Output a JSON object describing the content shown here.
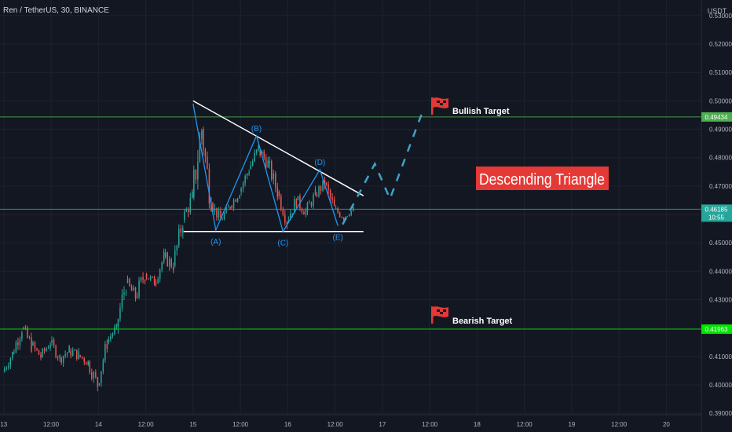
{
  "header": {
    "symbol_title": "Ren / TetherUS, 30, BINANCE",
    "currency": "USDT"
  },
  "chart_data": {
    "type": "candlestick",
    "price_axis": {
      "ylim": [
        0.3895,
        0.5355
      ],
      "ticks": [
        "0.39000",
        "0.40000",
        "0.41000",
        "0.42000",
        "0.43000",
        "0.44000",
        "0.45000",
        "0.46000",
        "0.47000",
        "0.48000",
        "0.49000",
        "0.50000",
        "0.51000",
        "0.52000",
        "0.53000"
      ]
    },
    "time_axis": {
      "ticks": [
        "13",
        "12:00",
        "14",
        "12:00",
        "15",
        "12:00",
        "16",
        "12:00",
        "17",
        "12:00",
        "18",
        "12:00",
        "19",
        "12:00",
        "20"
      ]
    },
    "horizontal_lines": [
      {
        "name": "bullish",
        "price": 0.49434,
        "label": "0.49434",
        "color": "#4caf50"
      },
      {
        "name": "current",
        "price": 0.46185,
        "label": "0.46185",
        "sublabel": "10:55",
        "color": "#26a69a"
      },
      {
        "name": "bearish",
        "price": 0.41963,
        "label": "0.41963",
        "color": "#00e600"
      }
    ],
    "triangle": {
      "upper_trendline": [
        {
          "t": 15.0,
          "p": 0.5
        },
        {
          "t": 16.8,
          "p": 0.4666
        }
      ],
      "lower_support": [
        {
          "t": 14.9,
          "p": 0.454
        },
        {
          "t": 16.8,
          "p": 0.454
        }
      ]
    },
    "waves": [
      {
        "label": "(A)",
        "t": 15.24,
        "p": 0.4545
      },
      {
        "label": "(B)",
        "t": 15.67,
        "p": 0.4877
      },
      {
        "label": "(C)",
        "t": 15.95,
        "p": 0.454
      },
      {
        "label": "(D)",
        "t": 16.34,
        "p": 0.4758
      },
      {
        "label": "(E)",
        "t": 16.53,
        "p": 0.456
      }
    ],
    "projection": [
      {
        "t": 16.58,
        "p": 0.4565
      },
      {
        "t": 16.92,
        "p": 0.4778
      },
      {
        "t": 17.08,
        "p": 0.4655
      },
      {
        "t": 17.42,
        "p": 0.4958
      }
    ],
    "annotations": {
      "pattern_label": "Descending Triangle",
      "bullish_label": "Bullish Target",
      "bearish_label": "Bearish Target"
    },
    "colors": {
      "up": "#26a69a",
      "down": "#ef5350",
      "wave": "#2196f3",
      "background": "#131722",
      "label_bg": "#e53935"
    },
    "candles": [
      [
        13.0,
        0.4045,
        0.4122,
        0.4005,
        0.411
      ],
      [
        13.1,
        0.411,
        0.4235,
        0.4085,
        0.42
      ],
      [
        13.2,
        0.42,
        0.4265,
        0.411,
        0.414
      ],
      [
        13.3,
        0.414,
        0.4185,
        0.406,
        0.41
      ],
      [
        13.4,
        0.41,
        0.418,
        0.4075,
        0.415
      ],
      [
        13.5,
        0.415,
        0.4195,
        0.408,
        0.4095
      ],
      [
        13.6,
        0.4095,
        0.4165,
        0.404,
        0.412
      ],
      [
        13.7,
        0.412,
        0.42,
        0.4085,
        0.4105
      ],
      [
        13.8,
        0.4105,
        0.416,
        0.405,
        0.408
      ],
      [
        13.9,
        0.408,
        0.412,
        0.3975,
        0.4
      ],
      [
        14.0,
        0.4,
        0.416,
        0.399,
        0.415
      ],
      [
        14.1,
        0.415,
        0.4215,
        0.4125,
        0.4205
      ],
      [
        14.2,
        0.4205,
        0.4395,
        0.418,
        0.436
      ],
      [
        14.3,
        0.436,
        0.4415,
        0.4275,
        0.431
      ],
      [
        14.4,
        0.431,
        0.4465,
        0.429,
        0.439
      ],
      [
        14.5,
        0.439,
        0.445,
        0.4345,
        0.436
      ],
      [
        14.6,
        0.436,
        0.448,
        0.434,
        0.445
      ],
      [
        14.7,
        0.445,
        0.453,
        0.439,
        0.442
      ],
      [
        14.8,
        0.442,
        0.461,
        0.44,
        0.458
      ],
      [
        14.9,
        0.458,
        0.47,
        0.454,
        0.466
      ],
      [
        15.0,
        0.466,
        0.4995,
        0.463,
        0.49
      ],
      [
        15.1,
        0.49,
        0.492,
        0.461,
        0.464
      ],
      [
        15.2,
        0.464,
        0.467,
        0.4548,
        0.458
      ],
      [
        15.3,
        0.458,
        0.466,
        0.4555,
        0.463
      ],
      [
        15.4,
        0.463,
        0.47,
        0.4595,
        0.468
      ],
      [
        15.5,
        0.468,
        0.479,
        0.4655,
        0.476
      ],
      [
        15.6,
        0.476,
        0.487,
        0.472,
        0.483
      ],
      [
        15.7,
        0.483,
        0.4885,
        0.474,
        0.478
      ],
      [
        15.8,
        0.478,
        0.481,
        0.464,
        0.468
      ],
      [
        15.9,
        0.468,
        0.47,
        0.4545,
        0.458
      ],
      [
        16.0,
        0.458,
        0.47,
        0.456,
        0.465
      ],
      [
        16.1,
        0.465,
        0.472,
        0.459,
        0.461
      ],
      [
        16.2,
        0.461,
        0.47,
        0.458,
        0.467
      ],
      [
        16.3,
        0.467,
        0.476,
        0.464,
        0.471
      ],
      [
        16.4,
        0.471,
        0.474,
        0.458,
        0.462
      ],
      [
        16.5,
        0.462,
        0.465,
        0.4565,
        0.459
      ],
      [
        16.6,
        0.459,
        0.4635,
        0.4575,
        0.4618
      ]
    ]
  }
}
